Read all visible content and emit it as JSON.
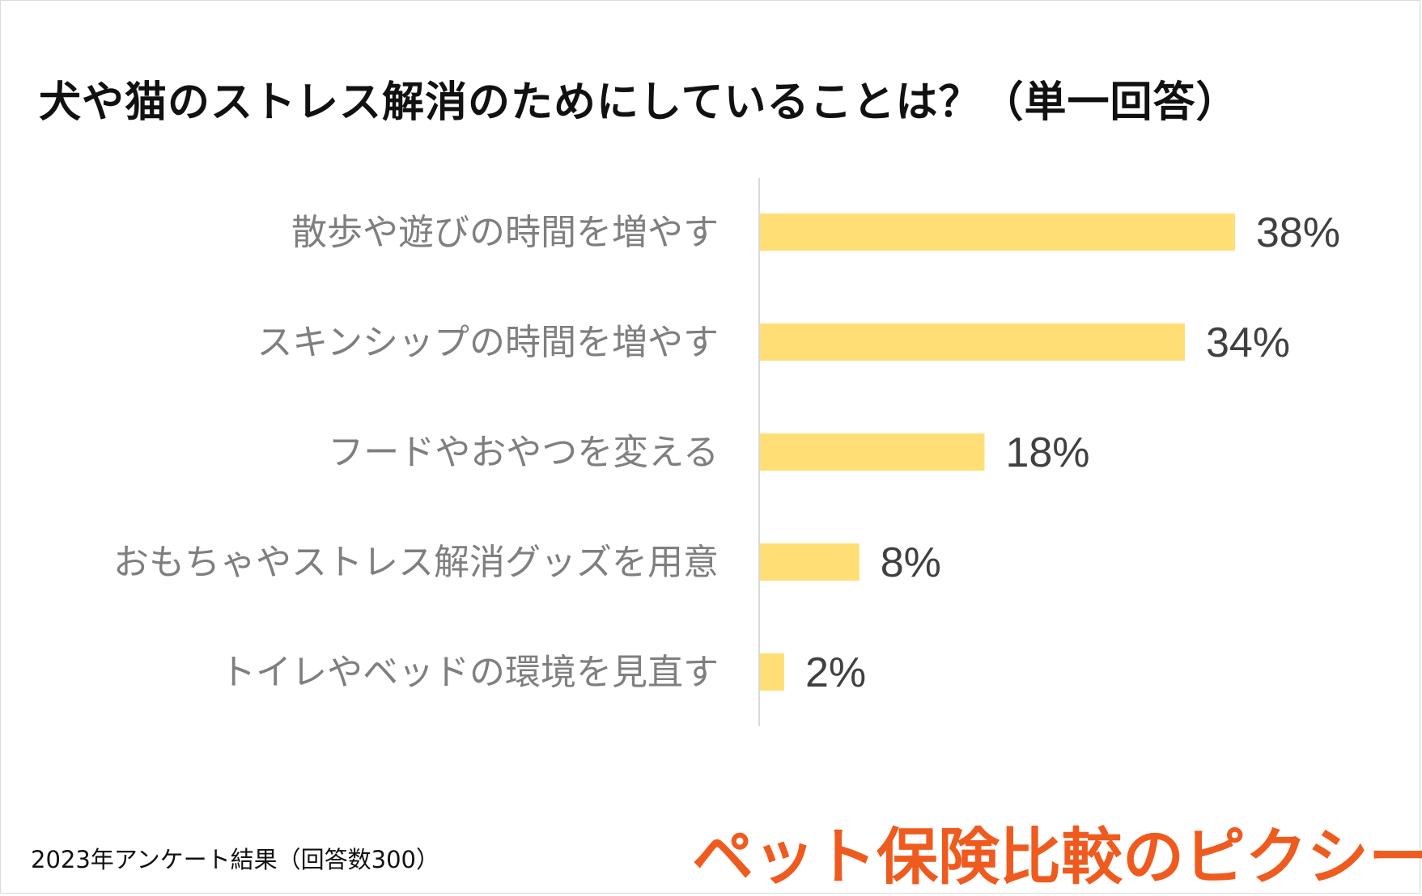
{
  "title": "犬や猫のストレス解消のためにしていることは？（単一回答）",
  "footnote": "2023年アンケート結果（回答数300）",
  "brand": {
    "text": "ペット保険比較のピクシー",
    "color": "#ef5b1e"
  },
  "colors": {
    "bar": "#ffde75",
    "axis": "#d9d9d9"
  },
  "chart_data": {
    "type": "bar",
    "orientation": "horizontal",
    "title": "犬や猫のストレス解消のためにしていることは？（単一回答）",
    "categories": [
      "散歩や遊びの時間を増やす",
      "スキンシップの時間を増やす",
      "フードやおやつを変える",
      "おもちゃやストレス解消グッズを用意",
      "トイレやベッドの環境を見直す"
    ],
    "values": [
      38,
      34,
      18,
      8,
      2
    ],
    "data_labels": [
      "38%",
      "34%",
      "18%",
      "8%",
      "2%"
    ],
    "xlim": [
      0,
      40
    ],
    "grid": false,
    "legend": "none"
  }
}
